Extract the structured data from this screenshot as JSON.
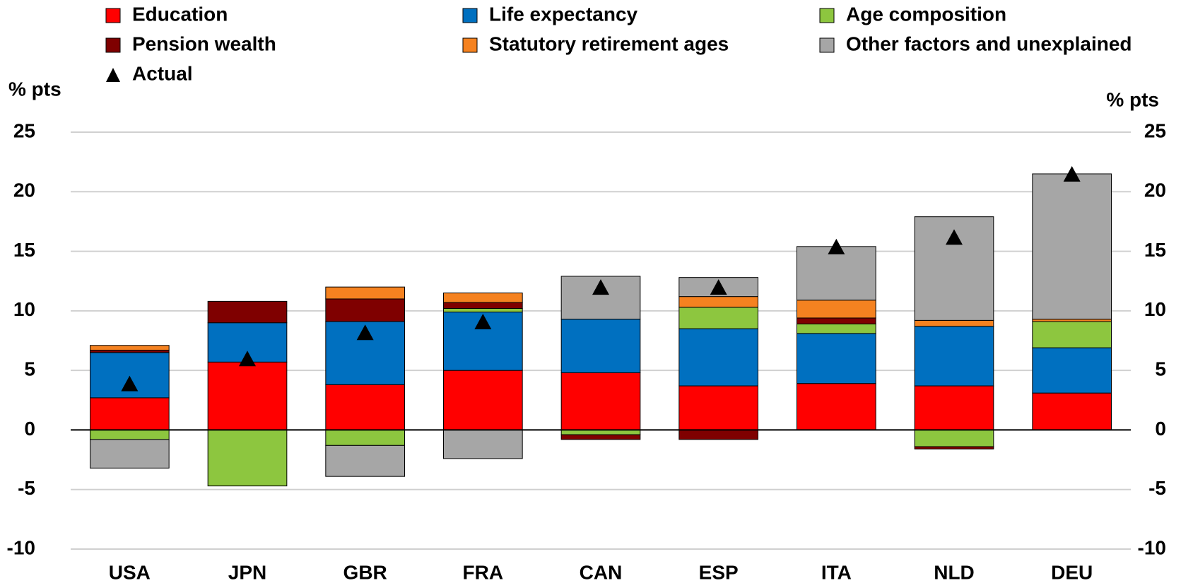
{
  "chart_data": {
    "type": "bar",
    "stacked": true,
    "axis_label": "% pts",
    "y2_axis_label": "% pts",
    "categories": [
      "USA",
      "JPN",
      "GBR",
      "FRA",
      "CAN",
      "ESP",
      "ITA",
      "NLD",
      "DEU"
    ],
    "series": [
      {
        "name": "Education",
        "color": "#ff0000",
        "values": [
          2.7,
          5.7,
          3.8,
          5.0,
          4.8,
          3.7,
          3.9,
          3.7,
          3.1
        ]
      },
      {
        "name": "Life expectancy",
        "color": "#0070c0",
        "values": [
          3.8,
          3.3,
          5.3,
          4.9,
          4.5,
          4.8,
          4.2,
          5.0,
          3.8
        ]
      },
      {
        "name": "Age composition",
        "color": "#8dc63f",
        "values": [
          -0.8,
          -4.7,
          -1.3,
          0.3,
          -0.4,
          1.8,
          0.8,
          -1.4,
          2.2
        ]
      },
      {
        "name": "Pension wealth",
        "color": "#7f0000",
        "values": [
          0.2,
          1.8,
          1.9,
          0.5,
          -0.4,
          -0.8,
          0.5,
          -0.2,
          0
        ]
      },
      {
        "name": "Statutory retirement ages",
        "color": "#f58220",
        "values": [
          0.4,
          0,
          1.0,
          0.8,
          0,
          0.9,
          1.5,
          0.5,
          0.2
        ]
      },
      {
        "name": "Other factors and unexplained",
        "color": "#a6a6a6",
        "values": [
          -2.4,
          0,
          -2.6,
          -2.4,
          3.6,
          1.6,
          4.5,
          8.7,
          12.2
        ]
      },
      {
        "name": "Actual",
        "type": "marker",
        "color": "#000000",
        "values": [
          3.9,
          6.0,
          8.2,
          9.1,
          12.0,
          12.0,
          15.4,
          16.2,
          21.5
        ]
      }
    ],
    "ylim": [
      -10,
      25
    ],
    "yticks": [
      -10,
      -5,
      0,
      5,
      10,
      15,
      20,
      25
    ],
    "y2lim": [
      -10,
      25
    ],
    "y2ticks": [
      -10,
      -5,
      0,
      5,
      10,
      15,
      20,
      25
    ],
    "grid": true
  }
}
